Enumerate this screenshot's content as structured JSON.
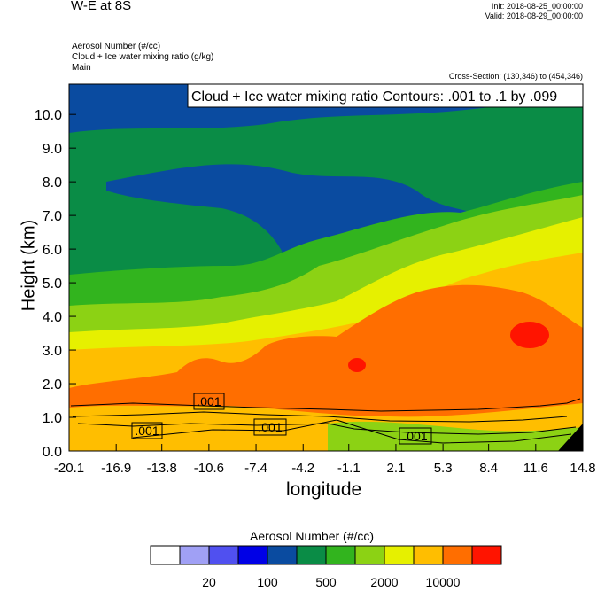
{
  "header": {
    "title": "W-E at 8S",
    "init": "Init: 2018-08-25_00:00:00",
    "valid": "Valid: 2018-08-29_00:00:00",
    "fields": [
      "Aerosol Number   (#/cc)",
      "Cloud + Ice water mixing ratio   (g/kg)",
      "Main"
    ],
    "cross_section": "Cross-Section: (130,346) to (454,346)"
  },
  "contour_label": "Cloud + Ice water mixing ratio Contours: .001 to .1 by .099",
  "contour_line_labels": [
    ".001",
    ".001",
    ".001",
    ".001"
  ],
  "colors": {
    "levels": [
      "#ffffff",
      "#a0a0f5",
      "#5050f0",
      "#0000e6",
      "#0a4ba0",
      "#0a8c46",
      "#32b41e",
      "#8cd214",
      "#e6f000",
      "#ffbe00",
      "#ff6e00",
      "#ff1400"
    ]
  },
  "chart_data": {
    "type": "heatmap",
    "title": "W-E at 8S",
    "xlabel": "longitude",
    "ylabel": "Height (km)",
    "x_ticks": [
      "-20.1",
      "-16.9",
      "-13.8",
      "-10.6",
      "-7.4",
      "-4.2",
      "-1.1",
      "2.1",
      "5.3",
      "8.4",
      "11.6",
      "14.8"
    ],
    "y_ticks": [
      "0.0",
      "1.0",
      "2.0",
      "3.0",
      "4.0",
      "5.0",
      "6.0",
      "7.0",
      "8.0",
      "9.0",
      "10.0"
    ],
    "xlim": [
      -20.1,
      14.8
    ],
    "ylim": [
      0.0,
      10.9
    ],
    "colorbar": {
      "title": "Aerosol Number  (#/cc)",
      "labels": [
        "20",
        "100",
        "500",
        "2000",
        "10000"
      ]
    }
  }
}
